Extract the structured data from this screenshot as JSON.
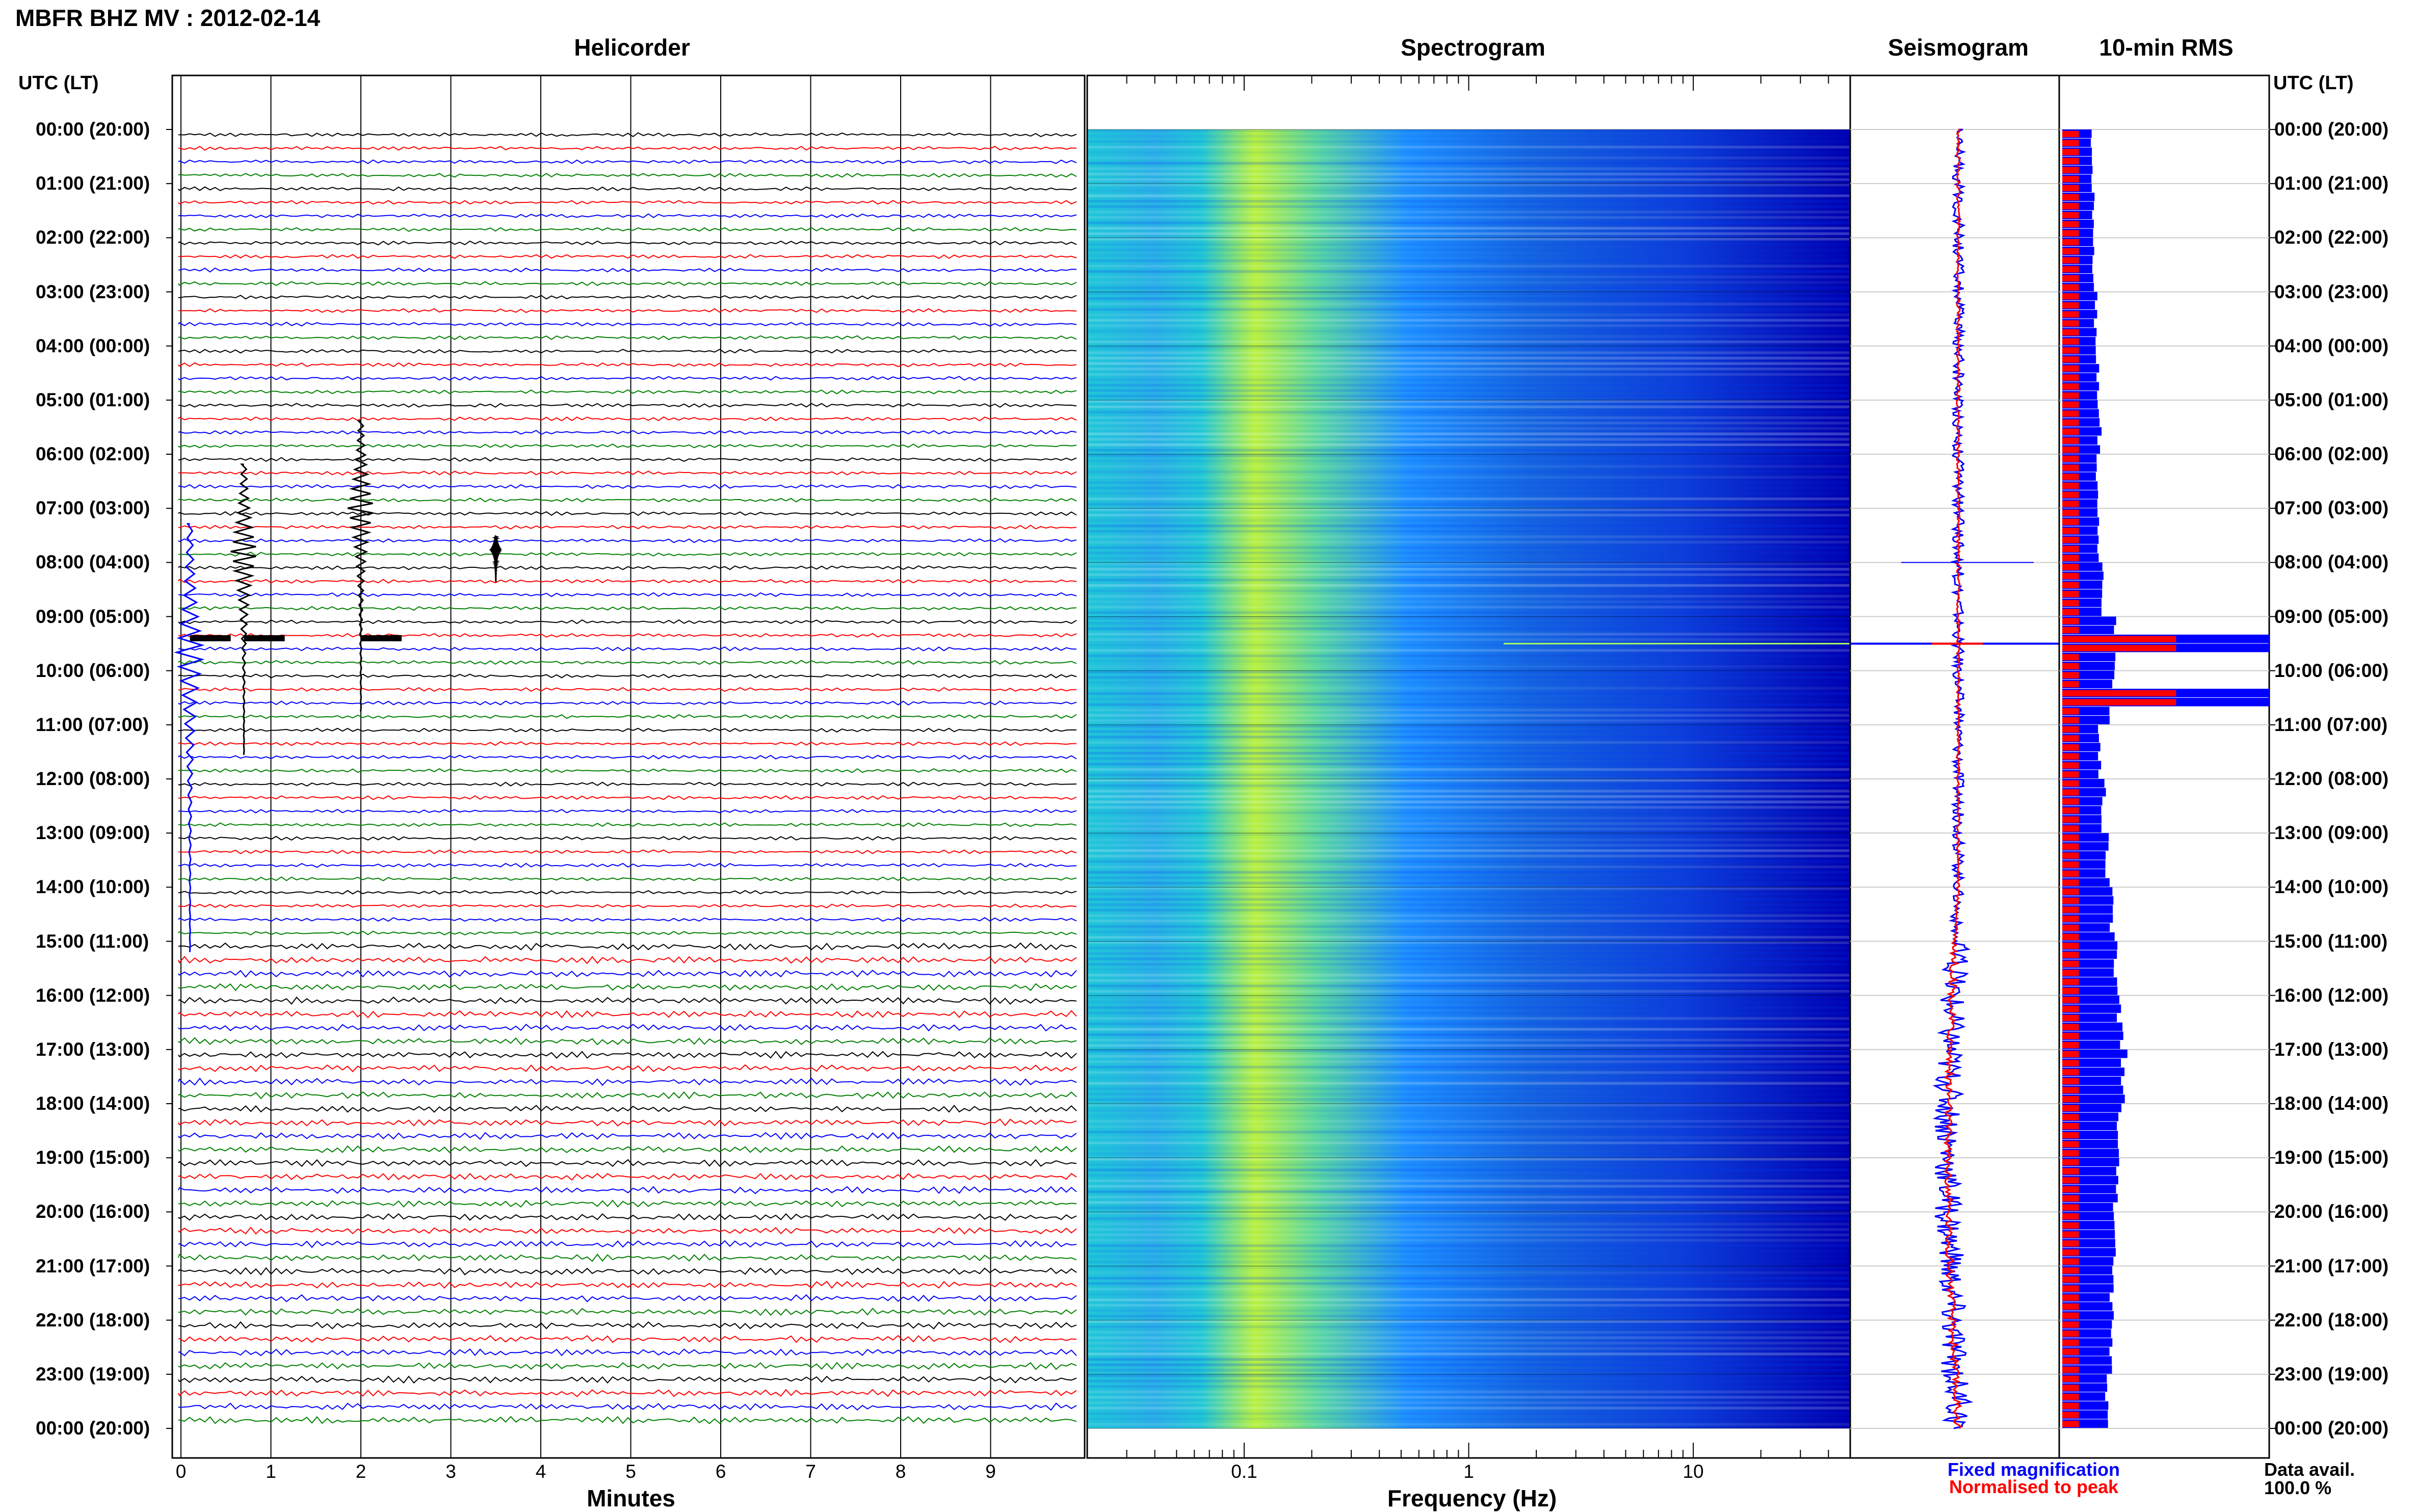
{
  "header": {
    "station_title": "MBFR BHZ MV : 2012-02-14",
    "utc_lt_label": "UTC (LT)"
  },
  "panels": {
    "helicorder": "Helicorder",
    "spectrogram": "Spectrogram",
    "seismogram": "Seismogram",
    "rms": "10-min RMS"
  },
  "time_labels": [
    "00:00 (20:00)",
    "01:00 (21:00)",
    "02:00 (22:00)",
    "03:00 (23:00)",
    "04:00 (00:00)",
    "05:00 (01:00)",
    "06:00 (02:00)",
    "07:00 (03:00)",
    "08:00 (04:00)",
    "09:00 (05:00)",
    "10:00 (06:00)",
    "11:00 (07:00)",
    "12:00 (08:00)",
    "13:00 (09:00)",
    "14:00 (10:00)",
    "15:00 (11:00)",
    "16:00 (12:00)",
    "17:00 (13:00)",
    "18:00 (14:00)",
    "19:00 (15:00)",
    "20:00 (16:00)",
    "21:00 (17:00)",
    "22:00 (18:00)",
    "23:00 (19:00)",
    "00:00 (20:00)"
  ],
  "legend": {
    "fixed": "Fixed magnification",
    "normalised": "Normalised to peak",
    "fixed_color": "#0000ff",
    "normalised_color": "#ff0000"
  },
  "data_avail": {
    "label": "Data avail.",
    "value": "100.0 %"
  },
  "chart_data": [
    {
      "type": "line",
      "title": "Helicorder",
      "xlabel": "Minutes",
      "x_ticks": [
        "0",
        "1",
        "2",
        "3",
        "4",
        "5",
        "6",
        "7",
        "8",
        "9"
      ],
      "xlim": [
        0,
        10
      ],
      "ylim_hours": [
        0,
        24
      ],
      "line_colors": [
        "#000000",
        "#ff0000",
        "#0000ff",
        "#008000"
      ],
      "events": [
        {
          "hour_start": 8.7,
          "minute": 0.1,
          "amplitude": "large",
          "duration_hours": 6.5
        },
        {
          "hour_start": 7.6,
          "minute": 0.7,
          "amplitude": "large"
        },
        {
          "hour_start": 6.8,
          "minute": 2.0,
          "amplitude": "large"
        },
        {
          "hour_start": 7.7,
          "minute": 3.5,
          "amplitude": "small"
        }
      ]
    },
    {
      "type": "heatmap",
      "title": "Spectrogram",
      "xlabel": "Frequency (Hz)",
      "x_scale": "log",
      "x_ticks": [
        "0.1",
        "1",
        "10"
      ],
      "xlim": [
        0.02,
        50
      ],
      "colormap": [
        "#00008b",
        "#0000ff",
        "#1e90ff",
        "#00ffff",
        "#adff2f",
        "#ffff00"
      ],
      "peak_energy_hz": [
        0.12,
        0.35
      ]
    },
    {
      "type": "line",
      "title": "Seismogram",
      "series": [
        {
          "name": "Fixed magnification",
          "color": "#0000ff"
        },
        {
          "name": "Normalised to peak",
          "color": "#ff0000"
        }
      ],
      "spike_hour": 9.5
    },
    {
      "type": "bar",
      "title": "10-min RMS",
      "orientation": "horizontal",
      "bins_per_hour": 6,
      "hours": [
        0,
        1,
        2,
        3,
        4,
        5,
        6,
        7,
        8,
        9,
        10,
        11,
        12,
        13,
        14,
        15,
        16,
        17,
        18,
        19,
        20,
        21,
        22,
        23
      ],
      "fixed_values": [
        0.14,
        0.15,
        0.15,
        0.16,
        0.17,
        0.18,
        0.17,
        0.18,
        0.19,
        0.26,
        0.24,
        0.18,
        0.2,
        0.22,
        0.24,
        0.26,
        0.28,
        0.3,
        0.28,
        0.26,
        0.26,
        0.24,
        0.24,
        0.22
      ],
      "normalised_values": [
        0.05,
        0.05,
        0.05,
        0.05,
        0.05,
        0.05,
        0.05,
        0.05,
        0.05,
        1.0,
        1.0,
        0.05,
        0.05,
        0.05,
        0.05,
        0.05,
        0.05,
        0.05,
        0.05,
        0.05,
        0.05,
        0.05,
        0.05,
        0.05
      ],
      "xlim": [
        0,
        1
      ]
    }
  ]
}
